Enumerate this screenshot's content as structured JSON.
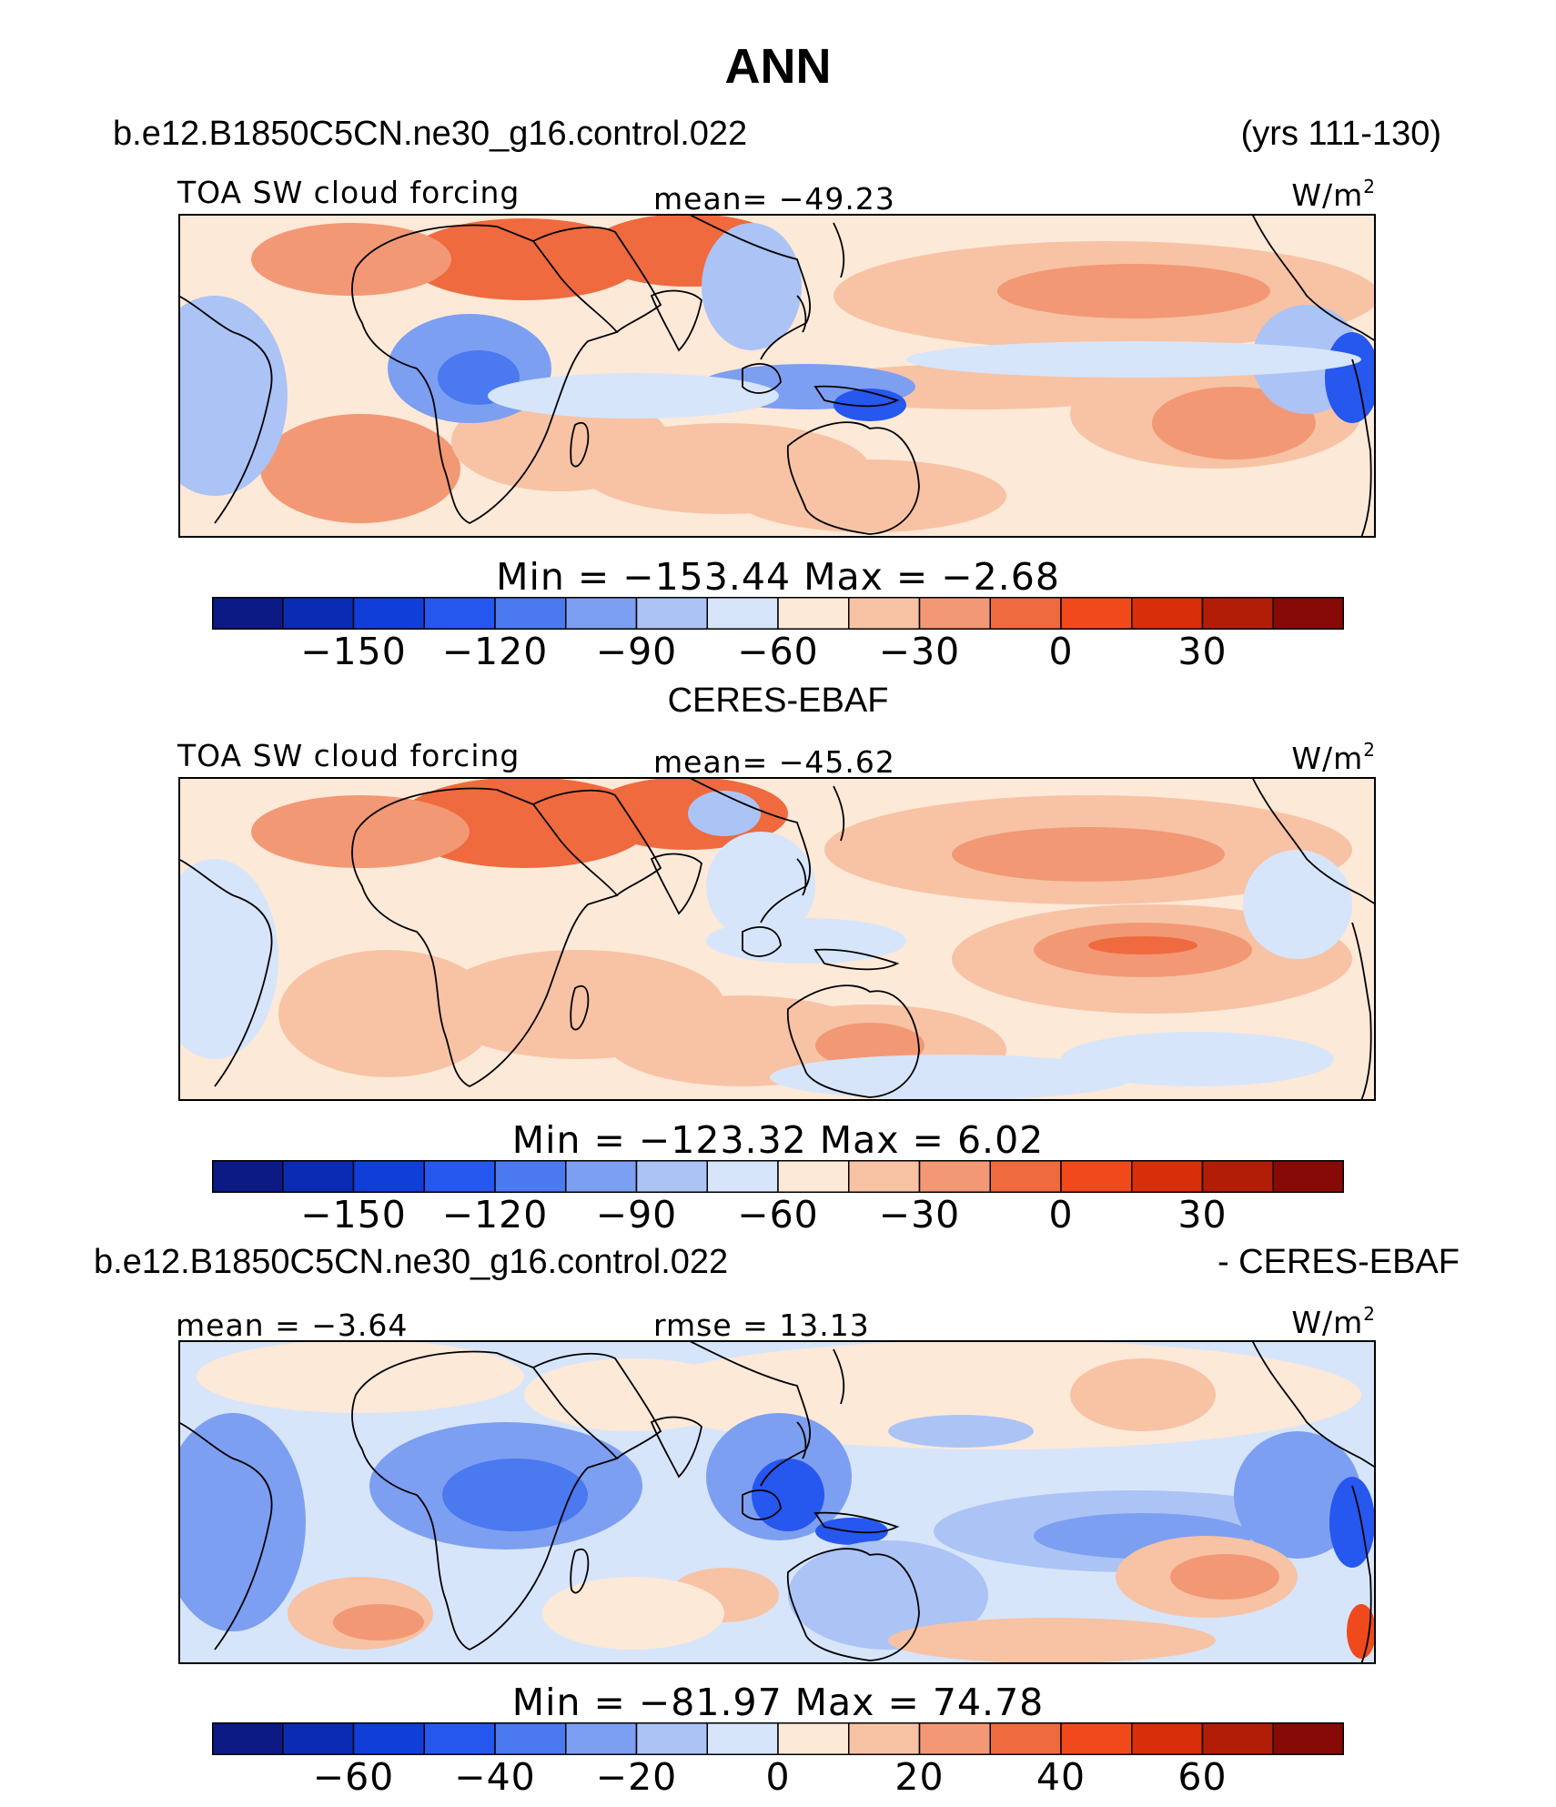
{
  "title": "ANN",
  "panels": [
    {
      "case_label": "b.e12.B1850C5CN.ne30_g16.control.022",
      "years_label": "(yrs 111-130)",
      "left_label": "TOA SW cloud forcing",
      "mean_label": "mean=  −49.23",
      "units": "W/m",
      "units_sup": "2",
      "minmax": "Min  =  −153.44  Max  =   −2.68"
    },
    {
      "case_label": "CERES-EBAF",
      "left_label": "TOA SW cloud forcing",
      "mean_label": "mean=  −45.62",
      "units": "W/m",
      "units_sup": "2",
      "minmax": "Min  =  −123.32  Max  =     6.02"
    },
    {
      "case_label": "b.e12.B1850C5CN.ne30_g16.control.022",
      "case_label_right": "- CERES-EBAF",
      "left_label": "mean  =   −3.64",
      "mean_label": "rmse  =   13.13",
      "units": "W/m",
      "units_sup": "2",
      "minmax": "Min  =  −81.97  Max  =   74.78"
    }
  ],
  "colorbars": [
    {
      "ticks": [
        "−150",
        "−120",
        "−90",
        "−60",
        "−30",
        "0",
        "30"
      ]
    },
    {
      "ticks": [
        "−150",
        "−120",
        "−90",
        "−60",
        "−30",
        "0",
        "30"
      ]
    },
    {
      "ticks": [
        "−60",
        "−40",
        "−20",
        "0",
        "20",
        "40",
        "60"
      ]
    }
  ],
  "palette": [
    "#0b1a85",
    "#0a2cb4",
    "#0f3fd8",
    "#2657ef",
    "#4a79f0",
    "#7d9ff2",
    "#acc3f5",
    "#d6e5fa",
    "#fde9d8",
    "#f7c3a4",
    "#f39874",
    "#ef6a3e",
    "#f04a1c",
    "#d92e0a",
    "#b21d08",
    "#860a05"
  ],
  "chart_data": [
    {
      "type": "heatmap",
      "title": "TOA SW cloud forcing",
      "mean": -49.23,
      "min": -153.44,
      "max": -2.68,
      "units": "W/m2",
      "colorbar_levels": [
        -165,
        -150,
        -135,
        -120,
        -105,
        -90,
        -75,
        -60,
        -45,
        -30,
        -15,
        0,
        15,
        30,
        45
      ],
      "colorbar_ticks": [
        -150,
        -120,
        -90,
        -60,
        -30,
        0,
        30
      ]
    },
    {
      "type": "heatmap",
      "title": "TOA SW cloud forcing",
      "mean": -45.62,
      "min": -123.32,
      "max": 6.02,
      "units": "W/m2",
      "colorbar_levels": [
        -165,
        -150,
        -135,
        -120,
        -105,
        -90,
        -75,
        -60,
        -45,
        -30,
        -15,
        0,
        15,
        30,
        45
      ],
      "colorbar_ticks": [
        -150,
        -120,
        -90,
        -60,
        -30,
        0,
        30
      ]
    },
    {
      "type": "heatmap",
      "mean": -3.64,
      "rmse": 13.13,
      "min": -81.97,
      "max": 74.78,
      "units": "W/m2",
      "colorbar_levels": [
        -70,
        -60,
        -50,
        -40,
        -30,
        -20,
        -10,
        0,
        10,
        20,
        30,
        40,
        50,
        60,
        70
      ],
      "colorbar_ticks": [
        -60,
        -40,
        -20,
        0,
        20,
        40,
        60
      ]
    }
  ]
}
